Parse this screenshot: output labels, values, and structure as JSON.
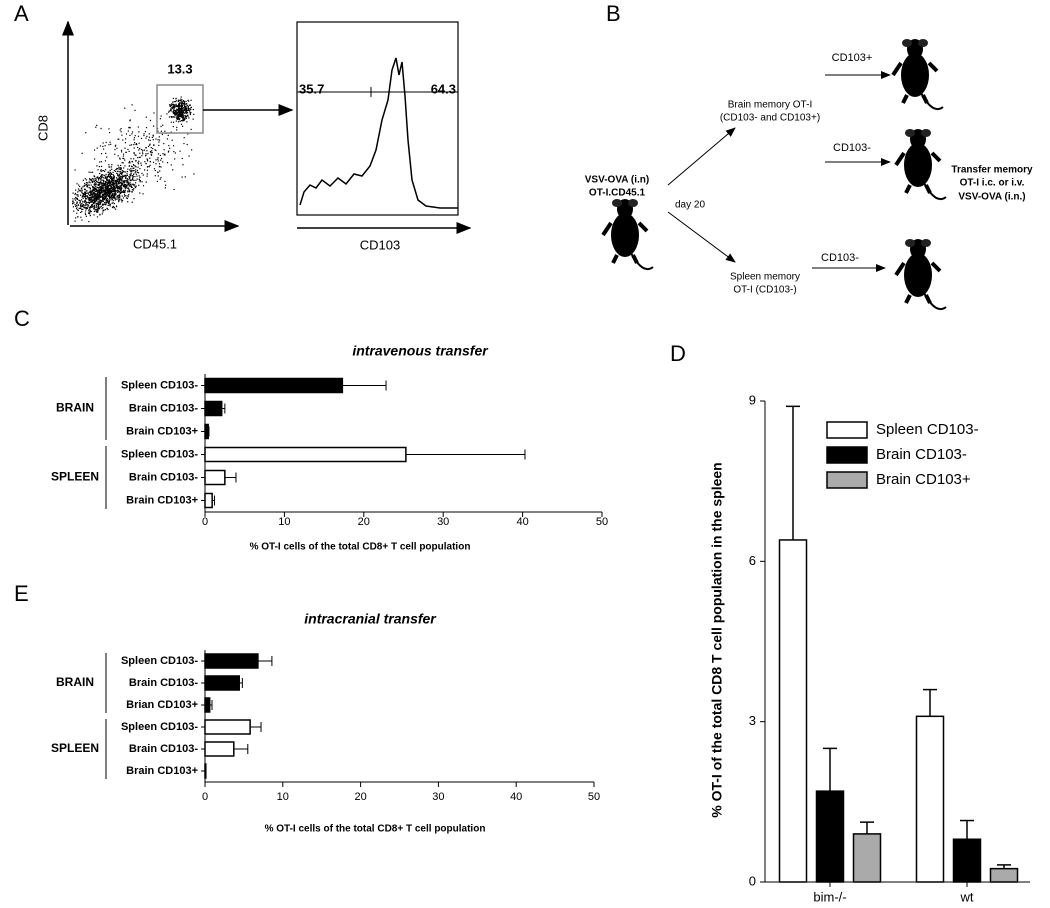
{
  "panel_letters": [
    "A",
    "B",
    "C",
    "D",
    "E"
  ],
  "panel_a": {
    "gate": 13.3,
    "left_gate": 35.7,
    "right_gate": 64.3,
    "y_label": "CD8",
    "x_label": "CD45.1",
    "hist_x_label": "CD103"
  },
  "panel_b": {
    "start_label": [
      "VSV-OVA (i.n)",
      "OT-I.CD45.1"
    ],
    "day": "day 20",
    "brain_label": [
      "Brain memory OT-I",
      "(CD103- and CD103+)"
    ],
    "spleen_label": [
      "Spleen memory",
      "OT-I (CD103-)"
    ],
    "arrows": [
      "CD103+",
      "CD103-",
      "CD103-"
    ],
    "transfer_label": [
      "Transfer memory",
      "OT-I  i.c. or i.v.",
      "VSV-OVA (i.n.)"
    ]
  },
  "chart_data": [
    {
      "type": "hbar",
      "title": "intravenous transfer",
      "x_label": "% OT-I cells of the total CD8+  T cell population",
      "xlim": [
        0,
        50
      ],
      "xticks": [
        0,
        10,
        20,
        30,
        40,
        50
      ],
      "series": [
        {
          "name": "BRAIN",
          "color": "#000000",
          "categories": [
            "Spleen CD103-",
            "Brain CD103-",
            "Brain CD103+"
          ],
          "values": [
            17.3,
            2.1,
            0.4
          ],
          "errors": [
            5.5,
            0.4,
            0.1
          ]
        },
        {
          "name": "SPLEEN",
          "color": "#ffffff",
          "categories": [
            "Spleen CD103-",
            "Brain CD103-",
            "Brain CD103+"
          ],
          "values": [
            25.3,
            2.5,
            0.9
          ],
          "errors": [
            15,
            1.4,
            0.3
          ]
        }
      ]
    },
    {
      "type": "hbar",
      "title": "intracranial transfer",
      "x_label": "% OT-I cells of the total CD8+  T cell population",
      "xlim": [
        0,
        50
      ],
      "xticks": [
        0,
        10,
        20,
        30,
        40,
        50
      ],
      "series": [
        {
          "name": "BRAIN",
          "color": "#000000",
          "categories": [
            "Spleen CD103-",
            "Brain CD103-",
            "Brian CD103+"
          ],
          "values": [
            6.8,
            4.4,
            0.6
          ],
          "errors": [
            1.8,
            0.4,
            0.3
          ]
        },
        {
          "name": "SPLEEN",
          "color": "#ffffff",
          "categories": [
            "Spleen CD103-",
            "Brain CD103-",
            "Brain CD103+"
          ],
          "values": [
            5.8,
            3.7,
            0.1
          ],
          "errors": [
            1.4,
            1.8,
            0
          ]
        }
      ]
    },
    {
      "type": "bar",
      "y_label": "% OT-I of the total CD8 T cell population in the spleen",
      "categories": [
        "bim-/-",
        "wt"
      ],
      "ylim": [
        0,
        9
      ],
      "yticks": [
        0,
        3,
        6,
        9
      ],
      "series": [
        {
          "name": "Spleen CD103-",
          "color": "#ffffff",
          "values": [
            6.4,
            3.1
          ],
          "errors": [
            2.5,
            0.5
          ]
        },
        {
          "name": "Brain CD103-",
          "color": "#000000",
          "values": [
            1.7,
            0.8
          ],
          "errors": [
            0.8,
            0.35
          ]
        },
        {
          "name": "Brain CD103+",
          "color": "#aaaaaa",
          "values": [
            0.9,
            0.25
          ],
          "errors": [
            0.22,
            0.07
          ]
        }
      ]
    }
  ]
}
